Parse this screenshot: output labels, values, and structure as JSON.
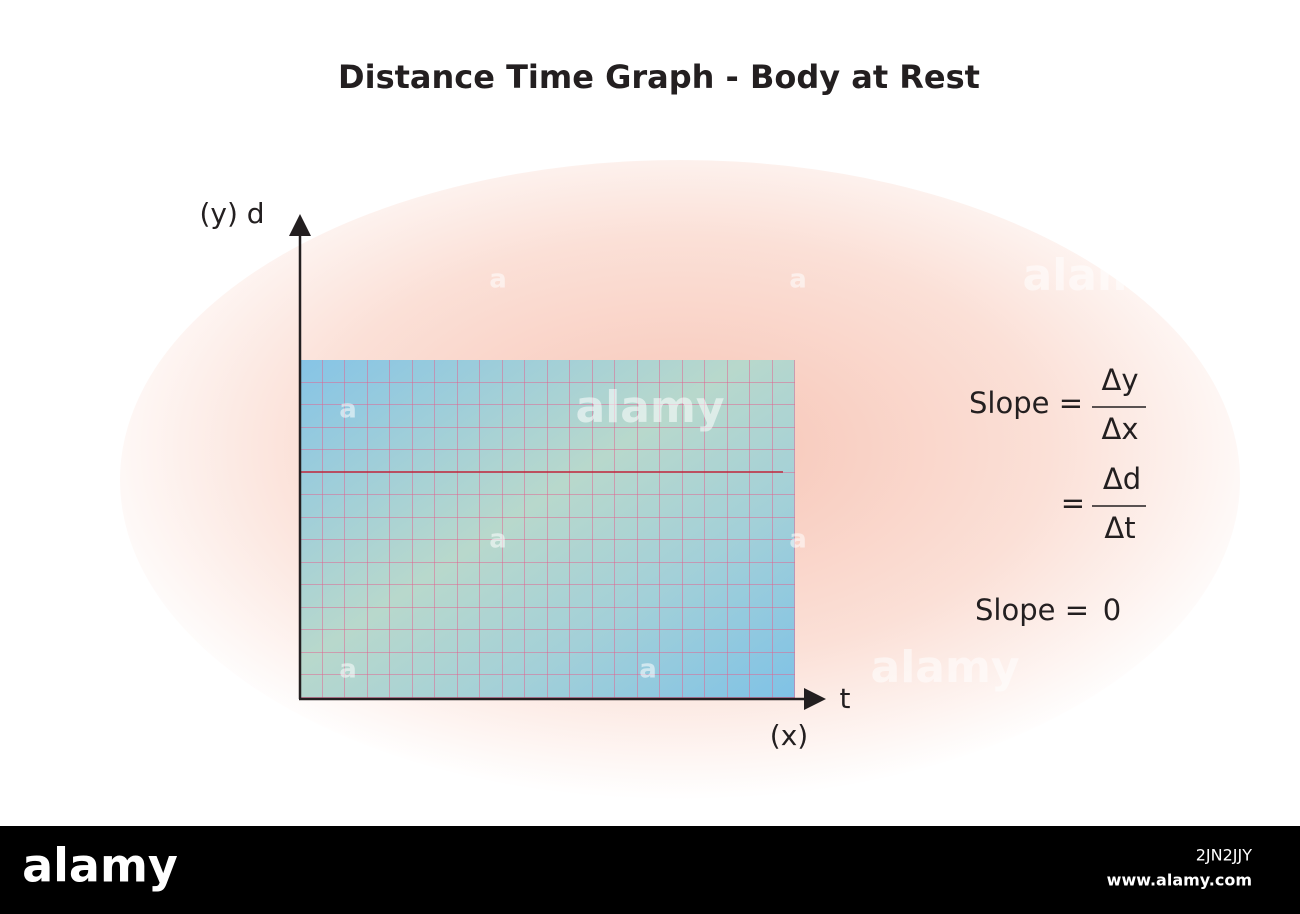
{
  "header": {
    "title": "Distance Time Graph - Body at Rest"
  },
  "graph": {
    "y_axis_label": "(y) d",
    "x_axis_label": "t",
    "x_axis_sublabel": "(x)"
  },
  "equations": {
    "line1": {
      "lhs": "Slope =",
      "numerator": "Δy",
      "denominator": "Δx"
    },
    "line2": {
      "lhs": "=",
      "numerator": "Δd",
      "denominator": "Δt"
    },
    "line3": {
      "lhs": "Slope =",
      "rhs": "0"
    }
  },
  "watermark": {
    "logo": "alamy",
    "mark": "a"
  },
  "footer": {
    "logo": "alamy",
    "image_id": "2JN2JJY",
    "url": "www.alamy.com"
  }
}
